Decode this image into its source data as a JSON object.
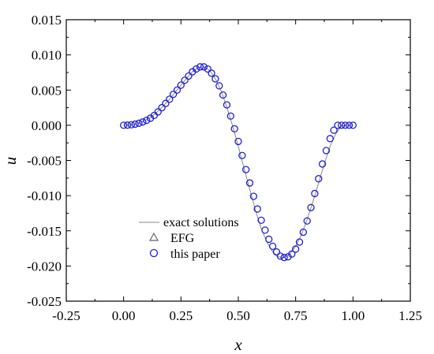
{
  "chart_data": {
    "type": "line",
    "title": "",
    "xlabel": "x",
    "ylabel": "u",
    "xlim": [
      -0.25,
      1.25
    ],
    "ylim": [
      -0.025,
      0.015
    ],
    "xticks": [
      -0.25,
      0.0,
      0.25,
      0.5,
      0.75,
      1.0,
      1.25
    ],
    "xtick_labels": [
      "-0.25",
      "0.00",
      "0.25",
      "0.50",
      "0.75",
      "1.00",
      "1.25"
    ],
    "yticks": [
      0.015,
      0.01,
      0.005,
      0.0,
      -0.005,
      -0.01,
      -0.015,
      -0.02,
      -0.025
    ],
    "ytick_labels": [
      "0.015",
      "0.010",
      "0.005",
      "0.000",
      "-0.005",
      "-0.010",
      "-0.015",
      "-0.020",
      "-0.025"
    ],
    "grid": false,
    "legend_position": "bottom-left",
    "series": [
      {
        "name": "exact solutions",
        "style": "line",
        "color": "#888888",
        "x": [
          0,
          0.025,
          0.05,
          0.075,
          0.1,
          0.125,
          0.15,
          0.175,
          0.2,
          0.225,
          0.25,
          0.275,
          0.3,
          0.325,
          0.35,
          0.375,
          0.4,
          0.425,
          0.45,
          0.475,
          0.5,
          0.525,
          0.55,
          0.575,
          0.6,
          0.625,
          0.65,
          0.675,
          0.7,
          0.725,
          0.75,
          0.775,
          0.8,
          0.825,
          0.85,
          0.875,
          0.9,
          0.925,
          0.95,
          0.975,
          1.0
        ],
        "y": [
          0.0,
          4e-05,
          0.00016,
          0.0004,
          0.0008,
          0.0013,
          0.002,
          0.0028,
          0.0037,
          0.0047,
          0.0057,
          0.0067,
          0.0076,
          0.0082,
          0.0083,
          0.0078,
          0.0066,
          0.0049,
          0.0026,
          -0.0001,
          -0.003,
          -0.0061,
          -0.0091,
          -0.0121,
          -0.0147,
          -0.0166,
          -0.018,
          -0.0187,
          -0.0188,
          -0.0183,
          -0.0172,
          -0.0156,
          -0.0134,
          -0.0109,
          -0.0082,
          -0.0055,
          -0.003,
          -0.0012,
          -0.0001,
          0.0,
          0.0
        ]
      },
      {
        "name": "EFG",
        "style": "marker-triangle",
        "color": "#666666",
        "x": [],
        "y": []
      },
      {
        "name": "this paper",
        "style": "marker-circle",
        "color": "#1f1fd6",
        "x": [
          0.0,
          0.0167,
          0.0333,
          0.05,
          0.0667,
          0.0833,
          0.1,
          0.1167,
          0.1333,
          0.15,
          0.1667,
          0.1833,
          0.2,
          0.2167,
          0.2333,
          0.25,
          0.2667,
          0.2833,
          0.3,
          0.3167,
          0.3333,
          0.35,
          0.3667,
          0.3833,
          0.4,
          0.4167,
          0.4333,
          0.45,
          0.4667,
          0.4833,
          0.5,
          0.5167,
          0.5333,
          0.55,
          0.5667,
          0.5833,
          0.6,
          0.6167,
          0.6333,
          0.65,
          0.6667,
          0.6833,
          0.7,
          0.7167,
          0.7333,
          0.75,
          0.7667,
          0.7833,
          0.8,
          0.8167,
          0.8333,
          0.85,
          0.8667,
          0.8833,
          0.9,
          0.9167,
          0.9333,
          0.95,
          0.9667,
          0.9833,
          1.0
        ],
        "y": [
          0.0,
          2e-05,
          7e-05,
          0.00016,
          0.00029,
          0.00047,
          0.0007,
          0.001,
          0.0014,
          0.0019,
          0.0025,
          0.0031,
          0.0037,
          0.0044,
          0.005,
          0.0057,
          0.0064,
          0.007,
          0.0076,
          0.008,
          0.0083,
          0.0083,
          0.008,
          0.0074,
          0.0066,
          0.0056,
          0.0043,
          0.0029,
          0.0013,
          -0.0005,
          -0.0023,
          -0.0043,
          -0.0063,
          -0.0082,
          -0.0101,
          -0.0119,
          -0.0135,
          -0.0149,
          -0.0162,
          -0.0172,
          -0.018,
          -0.0186,
          -0.0188,
          -0.0187,
          -0.0183,
          -0.0176,
          -0.0166,
          -0.0152,
          -0.0136,
          -0.0117,
          -0.0097,
          -0.0076,
          -0.0055,
          -0.0036,
          -0.0019,
          -0.0007,
          0.0,
          0.0,
          0.0,
          0.0,
          0.0
        ]
      }
    ]
  }
}
